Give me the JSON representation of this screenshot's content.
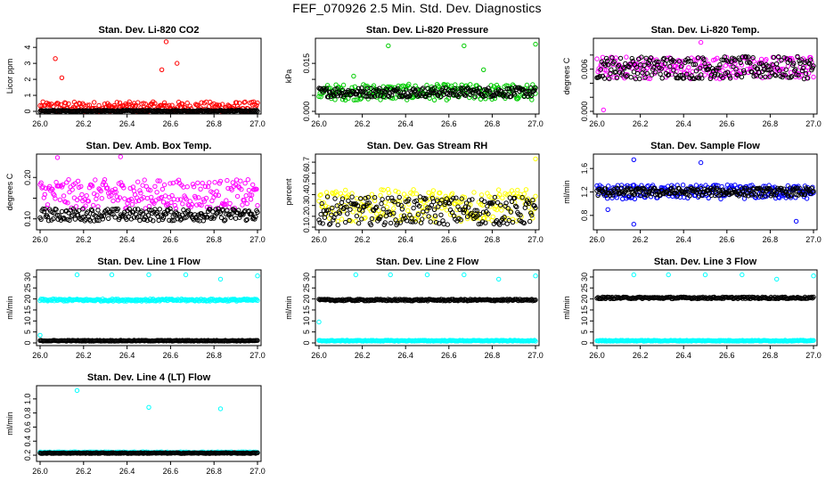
{
  "page": {
    "title": "FEF_070926  2.5 Min. Std. Dev. Diagnostics"
  },
  "x_axis": {
    "range": [
      26.0,
      27.0
    ],
    "ticks": [
      26.0,
      26.2,
      26.4,
      26.6,
      26.8,
      27.0
    ],
    "tick_labels": [
      "26.0",
      "26.2",
      "26.4",
      "26.6",
      "26.8",
      "27.0"
    ]
  },
  "chart_data": [
    {
      "type": "scatter",
      "title": "Stan. Dev. Li-820 CO2",
      "xlabel": "",
      "ylabel": "Licor ppm",
      "ylim": [
        0,
        4.4
      ],
      "yticks": [
        0,
        1,
        2,
        3,
        4
      ],
      "ytick_labels": [
        "0",
        "1",
        "2",
        "3",
        "4"
      ],
      "series": [
        {
          "name": "primary",
          "color": "#ff0000",
          "base": 0.25,
          "spread": 0.35,
          "outliers": [
            [
              26.58,
              4.35
            ],
            [
              26.07,
              3.3
            ],
            [
              26.56,
              2.6
            ],
            [
              26.63,
              3.0
            ],
            [
              26.1,
              2.1
            ]
          ]
        },
        {
          "name": "secondary",
          "color": "#000000",
          "base": 0.02,
          "spread": 0.05,
          "outliers": []
        }
      ]
    },
    {
      "type": "scatter",
      "title": "Stan. Dev. Li-820 Pressure",
      "xlabel": "",
      "ylabel": "kPa",
      "ylim": [
        0,
        0.022
      ],
      "yticks": [
        0.0,
        0.005,
        0.01,
        0.015
      ],
      "ytick_labels": [
        "0.000",
        "",
        "",
        "0.015"
      ],
      "series": [
        {
          "name": "primary",
          "color": "#00cc00",
          "base": 0.006,
          "spread": 0.0025,
          "outliers": [
            [
              26.32,
              0.0205
            ],
            [
              26.67,
              0.0205
            ],
            [
              27.0,
              0.021
            ],
            [
              26.76,
              0.013
            ],
            [
              26.16,
              0.011
            ]
          ]
        },
        {
          "name": "secondary",
          "color": "#000000",
          "base": 0.006,
          "spread": 0.0015,
          "outliers": []
        }
      ]
    },
    {
      "type": "scatter",
      "title": "Stan. Dev. Li-820 Temp.",
      "xlabel": "",
      "ylabel": "degrees C",
      "ylim": [
        0,
        0.01
      ],
      "yticks": [
        0.0,
        0.002,
        0.004,
        0.006,
        0.008
      ],
      "ytick_labels": [
        "0.000",
        "",
        "",
        "0.006",
        ""
      ],
      "series": [
        {
          "name": "primary",
          "color": "#ff00ff",
          "base": 0.0062,
          "spread": 0.0016,
          "outliers": [
            [
              26.03,
              0.0002
            ],
            [
              26.48,
              0.0098
            ]
          ]
        },
        {
          "name": "secondary",
          "color": "#000000",
          "base": 0.0062,
          "spread": 0.0016,
          "outliers": []
        }
      ]
    },
    {
      "type": "scatter",
      "title": "Stan. Dev. Amb. Box Temp.",
      "xlabel": "",
      "ylabel": "degrees C",
      "ylim": [
        0.08,
        0.25
      ],
      "yticks": [
        0.1,
        0.15,
        0.2
      ],
      "ytick_labels": [
        "0.10",
        "",
        "0.20"
      ],
      "series": [
        {
          "name": "primary",
          "color": "#ff00ff",
          "base": 0.16,
          "spread": 0.035,
          "outliers": [
            [
              26.08,
              0.248
            ],
            [
              26.37,
              0.25
            ]
          ]
        },
        {
          "name": "secondary",
          "color": "#000000",
          "base": 0.11,
          "spread": 0.015,
          "outliers": []
        }
      ]
    },
    {
      "type": "scatter",
      "title": "Stan. Dev. Gas Stream RH",
      "xlabel": "",
      "ylabel": "percent",
      "ylim": [
        0.1,
        0.75
      ],
      "yticks": [
        0.1,
        0.2,
        0.3,
        0.4,
        0.5,
        0.6,
        0.7
      ],
      "ytick_labels": [
        "0.1",
        "0.2",
        "0.3",
        "0.4",
        "0.5",
        "0.6",
        "0.7"
      ],
      "series": [
        {
          "name": "primary",
          "color": "#ffff00",
          "base": 0.3,
          "spread": 0.15,
          "outliers": [
            [
              27.0,
              0.73
            ]
          ]
        },
        {
          "name": "secondary",
          "color": "#000000",
          "base": 0.25,
          "spread": 0.13,
          "outliers": []
        }
      ]
    },
    {
      "type": "scatter",
      "title": "Stan. Dev. Sample Flow",
      "xlabel": "",
      "ylabel": "ml/min",
      "ylim": [
        0.6,
        1.8
      ],
      "yticks": [
        0.8,
        1.2,
        1.6
      ],
      "ytick_labels": [
        "0.8",
        "1.2",
        "1.6"
      ],
      "series": [
        {
          "name": "primary",
          "color": "#0000ff",
          "base": 1.2,
          "spread": 0.12,
          "outliers": [
            [
              26.17,
              1.75
            ],
            [
              26.48,
              1.7
            ],
            [
              26.17,
              0.65
            ],
            [
              26.92,
              0.7
            ],
            [
              26.05,
              0.9
            ]
          ]
        },
        {
          "name": "secondary",
          "color": "#000000",
          "base": 1.2,
          "spread": 0.07,
          "outliers": []
        }
      ]
    },
    {
      "type": "scatter",
      "title": "Stan. Dev. Line 1 Flow",
      "xlabel": "",
      "ylabel": "ml/min",
      "ylim": [
        0,
        32
      ],
      "yticks": [
        0,
        5,
        10,
        15,
        20,
        25,
        30
      ],
      "ytick_labels": [
        "0",
        "5",
        "10",
        "15",
        "20",
        "25",
        "30"
      ],
      "series": [
        {
          "name": "primary",
          "color": "#00ffff",
          "base": 19.5,
          "spread": 0.5,
          "outliers": [
            [
              26.17,
              31
            ],
            [
              26.33,
              31
            ],
            [
              26.5,
              31
            ],
            [
              26.67,
              31
            ],
            [
              26.83,
              29
            ],
            [
              27.0,
              30.5
            ],
            [
              26.0,
              3.5
            ]
          ]
        },
        {
          "name": "secondary",
          "color": "#000000",
          "base": 1.0,
          "spread": 0.2,
          "outliers": []
        }
      ]
    },
    {
      "type": "scatter",
      "title": "Stan. Dev. Line 2 Flow",
      "xlabel": "",
      "ylabel": "ml/min",
      "ylim": [
        0,
        32
      ],
      "yticks": [
        0,
        5,
        10,
        15,
        20,
        25,
        30
      ],
      "ytick_labels": [
        "0",
        "5",
        "10",
        "15",
        "20",
        "25",
        "30"
      ],
      "series": [
        {
          "name": "primary",
          "color": "#00ffff",
          "base": 1.0,
          "spread": 0.2,
          "outliers": [
            [
              26.17,
              31
            ],
            [
              26.33,
              31
            ],
            [
              26.5,
              31
            ],
            [
              26.67,
              31
            ],
            [
              26.83,
              29
            ],
            [
              27.0,
              30.5
            ],
            [
              26.0,
              9.5
            ]
          ]
        },
        {
          "name": "secondary",
          "color": "#000000",
          "base": 19.5,
          "spread": 0.4,
          "outliers": []
        }
      ]
    },
    {
      "type": "scatter",
      "title": "Stan. Dev. Line 3 Flow",
      "xlabel": "",
      "ylabel": "ml/min",
      "ylim": [
        0,
        32
      ],
      "yticks": [
        0,
        5,
        10,
        15,
        20,
        25,
        30
      ],
      "ytick_labels": [
        "0",
        "5",
        "10",
        "15",
        "20",
        "25",
        "30"
      ],
      "series": [
        {
          "name": "primary",
          "color": "#00ffff",
          "base": 1.0,
          "spread": 0.2,
          "outliers": [
            [
              26.17,
              31
            ],
            [
              26.33,
              31
            ],
            [
              26.5,
              31
            ],
            [
              26.67,
              31
            ],
            [
              26.83,
              29
            ],
            [
              27.0,
              30.5
            ]
          ]
        },
        {
          "name": "secondary",
          "color": "#000000",
          "base": 20.5,
          "spread": 0.4,
          "outliers": []
        }
      ]
    },
    {
      "type": "scatter",
      "title": "Stan. Dev. Line 4 (LT) Flow",
      "xlabel": "",
      "ylabel": "ml/min",
      "ylim": [
        0.15,
        1.15
      ],
      "yticks": [
        0.2,
        0.4,
        0.6,
        0.8,
        1.0
      ],
      "ytick_labels": [
        "0.2",
        "0.4",
        "0.6",
        "0.8",
        "1.0"
      ],
      "series": [
        {
          "name": "primary",
          "color": "#00ffff",
          "base": 0.24,
          "spread": 0.008,
          "outliers": [
            [
              26.17,
              1.12
            ],
            [
              26.5,
              0.88
            ],
            [
              26.83,
              0.86
            ]
          ]
        },
        {
          "name": "secondary",
          "color": "#000000",
          "base": 0.23,
          "spread": 0.006,
          "outliers": []
        }
      ]
    }
  ]
}
